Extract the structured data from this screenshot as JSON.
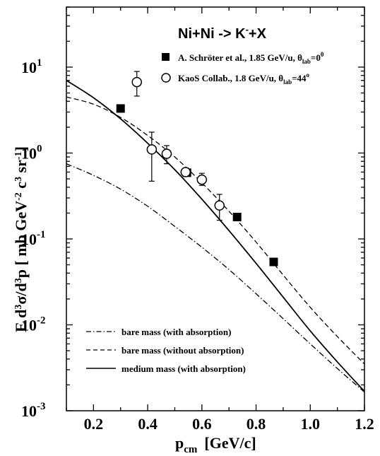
{
  "chart_data": {
    "type": "line",
    "title": "Ni+Ni -> K+X",
    "title_superscript": "-",
    "xlabel": "p_cm [GeV/c]",
    "xlabel_main": "p",
    "xlabel_sub": "cm",
    "xlabel_unit": "[GeV/c]",
    "ylabel": "E d3σ/d3p [ mb GeV-2 c3 sr-1]",
    "xlim": [
      0.1,
      1.2
    ],
    "ylim": [
      0.001,
      50
    ],
    "yscale": "log",
    "x_ticks": [
      0.2,
      0.4,
      0.6,
      0.8,
      1.0,
      1.2
    ],
    "x_tick_labels": [
      "0.2",
      "0.4",
      "0.6",
      "0.8",
      "1.0",
      "1.2"
    ],
    "y_ticks": [
      0.001,
      0.01,
      0.1,
      1,
      10
    ],
    "y_tick_labels": [
      {
        "base": "10",
        "exp": "-3"
      },
      {
        "base": "10",
        "exp": "-2"
      },
      {
        "base": "10",
        "exp": "-1"
      },
      {
        "base": "10",
        "exp": "0"
      },
      {
        "base": "10",
        "exp": "1"
      }
    ],
    "grid": false,
    "series": [
      {
        "name": "bare mass (with absorption)",
        "style": "dash-dot",
        "x": [
          0.1,
          0.2,
          0.3,
          0.4,
          0.5,
          0.6,
          0.7,
          0.8,
          0.9,
          1.0,
          1.1,
          1.2
        ],
        "y": [
          0.75,
          0.55,
          0.38,
          0.24,
          0.14,
          0.08,
          0.044,
          0.023,
          0.0118,
          0.006,
          0.0031,
          0.00165
        ]
      },
      {
        "name": "bare mass (without absorption)",
        "style": "dashed",
        "x": [
          0.1,
          0.2,
          0.3,
          0.4,
          0.5,
          0.6,
          0.7,
          0.8,
          0.9,
          1.0,
          1.1,
          1.2
        ],
        "y": [
          4.5,
          3.7,
          2.6,
          1.6,
          0.9,
          0.45,
          0.21,
          0.092,
          0.038,
          0.016,
          0.0073,
          0.0035
        ]
      },
      {
        "name": "medium mass (with absorption)",
        "style": "solid",
        "x": [
          0.1,
          0.2,
          0.3,
          0.4,
          0.5,
          0.6,
          0.7,
          0.8,
          0.9,
          1.0,
          1.1,
          1.2
        ],
        "y": [
          7.0,
          4.4,
          2.5,
          1.3,
          0.64,
          0.29,
          0.125,
          0.052,
          0.021,
          0.0085,
          0.0037,
          0.00168
        ]
      }
    ],
    "data_sets": [
      {
        "name": "A. Schröter et al., 1.85 GeV/u, θlab=0o",
        "label_main": "A. Schröter et al., 1.85 GeV/u, θ",
        "label_sub": "lab",
        "label_tail": "=0",
        "label_sup": "0",
        "marker": "filled-square",
        "points": [
          {
            "x": 0.3,
            "y": 3.3,
            "yerr_lo": 3.0,
            "yerr_hi": 3.6
          },
          {
            "x": 0.545,
            "y": 0.59,
            "yerr_lo": 0.54,
            "yerr_hi": 0.64
          },
          {
            "x": 0.73,
            "y": 0.18,
            "yerr_lo": 0.168,
            "yerr_hi": 0.195
          },
          {
            "x": 0.865,
            "y": 0.054,
            "yerr_lo": 0.05,
            "yerr_hi": 0.058
          }
        ]
      },
      {
        "name": "KaoS Collab., 1.8 GeV/u, θlab=44o",
        "label_main": "KaoS Collab., 1.8 GeV/u, θ",
        "label_sub": "lab",
        "label_tail": "=44",
        "label_sup": "o",
        "marker": "open-circle",
        "points": [
          {
            "x": 0.36,
            "y": 6.7,
            "yerr_lo": 4.6,
            "yerr_hi": 8.9
          },
          {
            "x": 0.415,
            "y": 1.1,
            "yerr_lo": 0.47,
            "yerr_hi": 1.75
          },
          {
            "x": 0.47,
            "y": 0.98,
            "yerr_lo": 0.75,
            "yerr_hi": 1.22
          },
          {
            "x": 0.54,
            "y": 0.6,
            "yerr_lo": 0.54,
            "yerr_hi": 0.67
          },
          {
            "x": 0.6,
            "y": 0.49,
            "yerr_lo": 0.42,
            "yerr_hi": 0.58
          },
          {
            "x": 0.665,
            "y": 0.245,
            "yerr_lo": 0.165,
            "yerr_hi": 0.33
          }
        ]
      }
    ],
    "legend_placement": "bottom-left (lines), top-right (data)"
  }
}
